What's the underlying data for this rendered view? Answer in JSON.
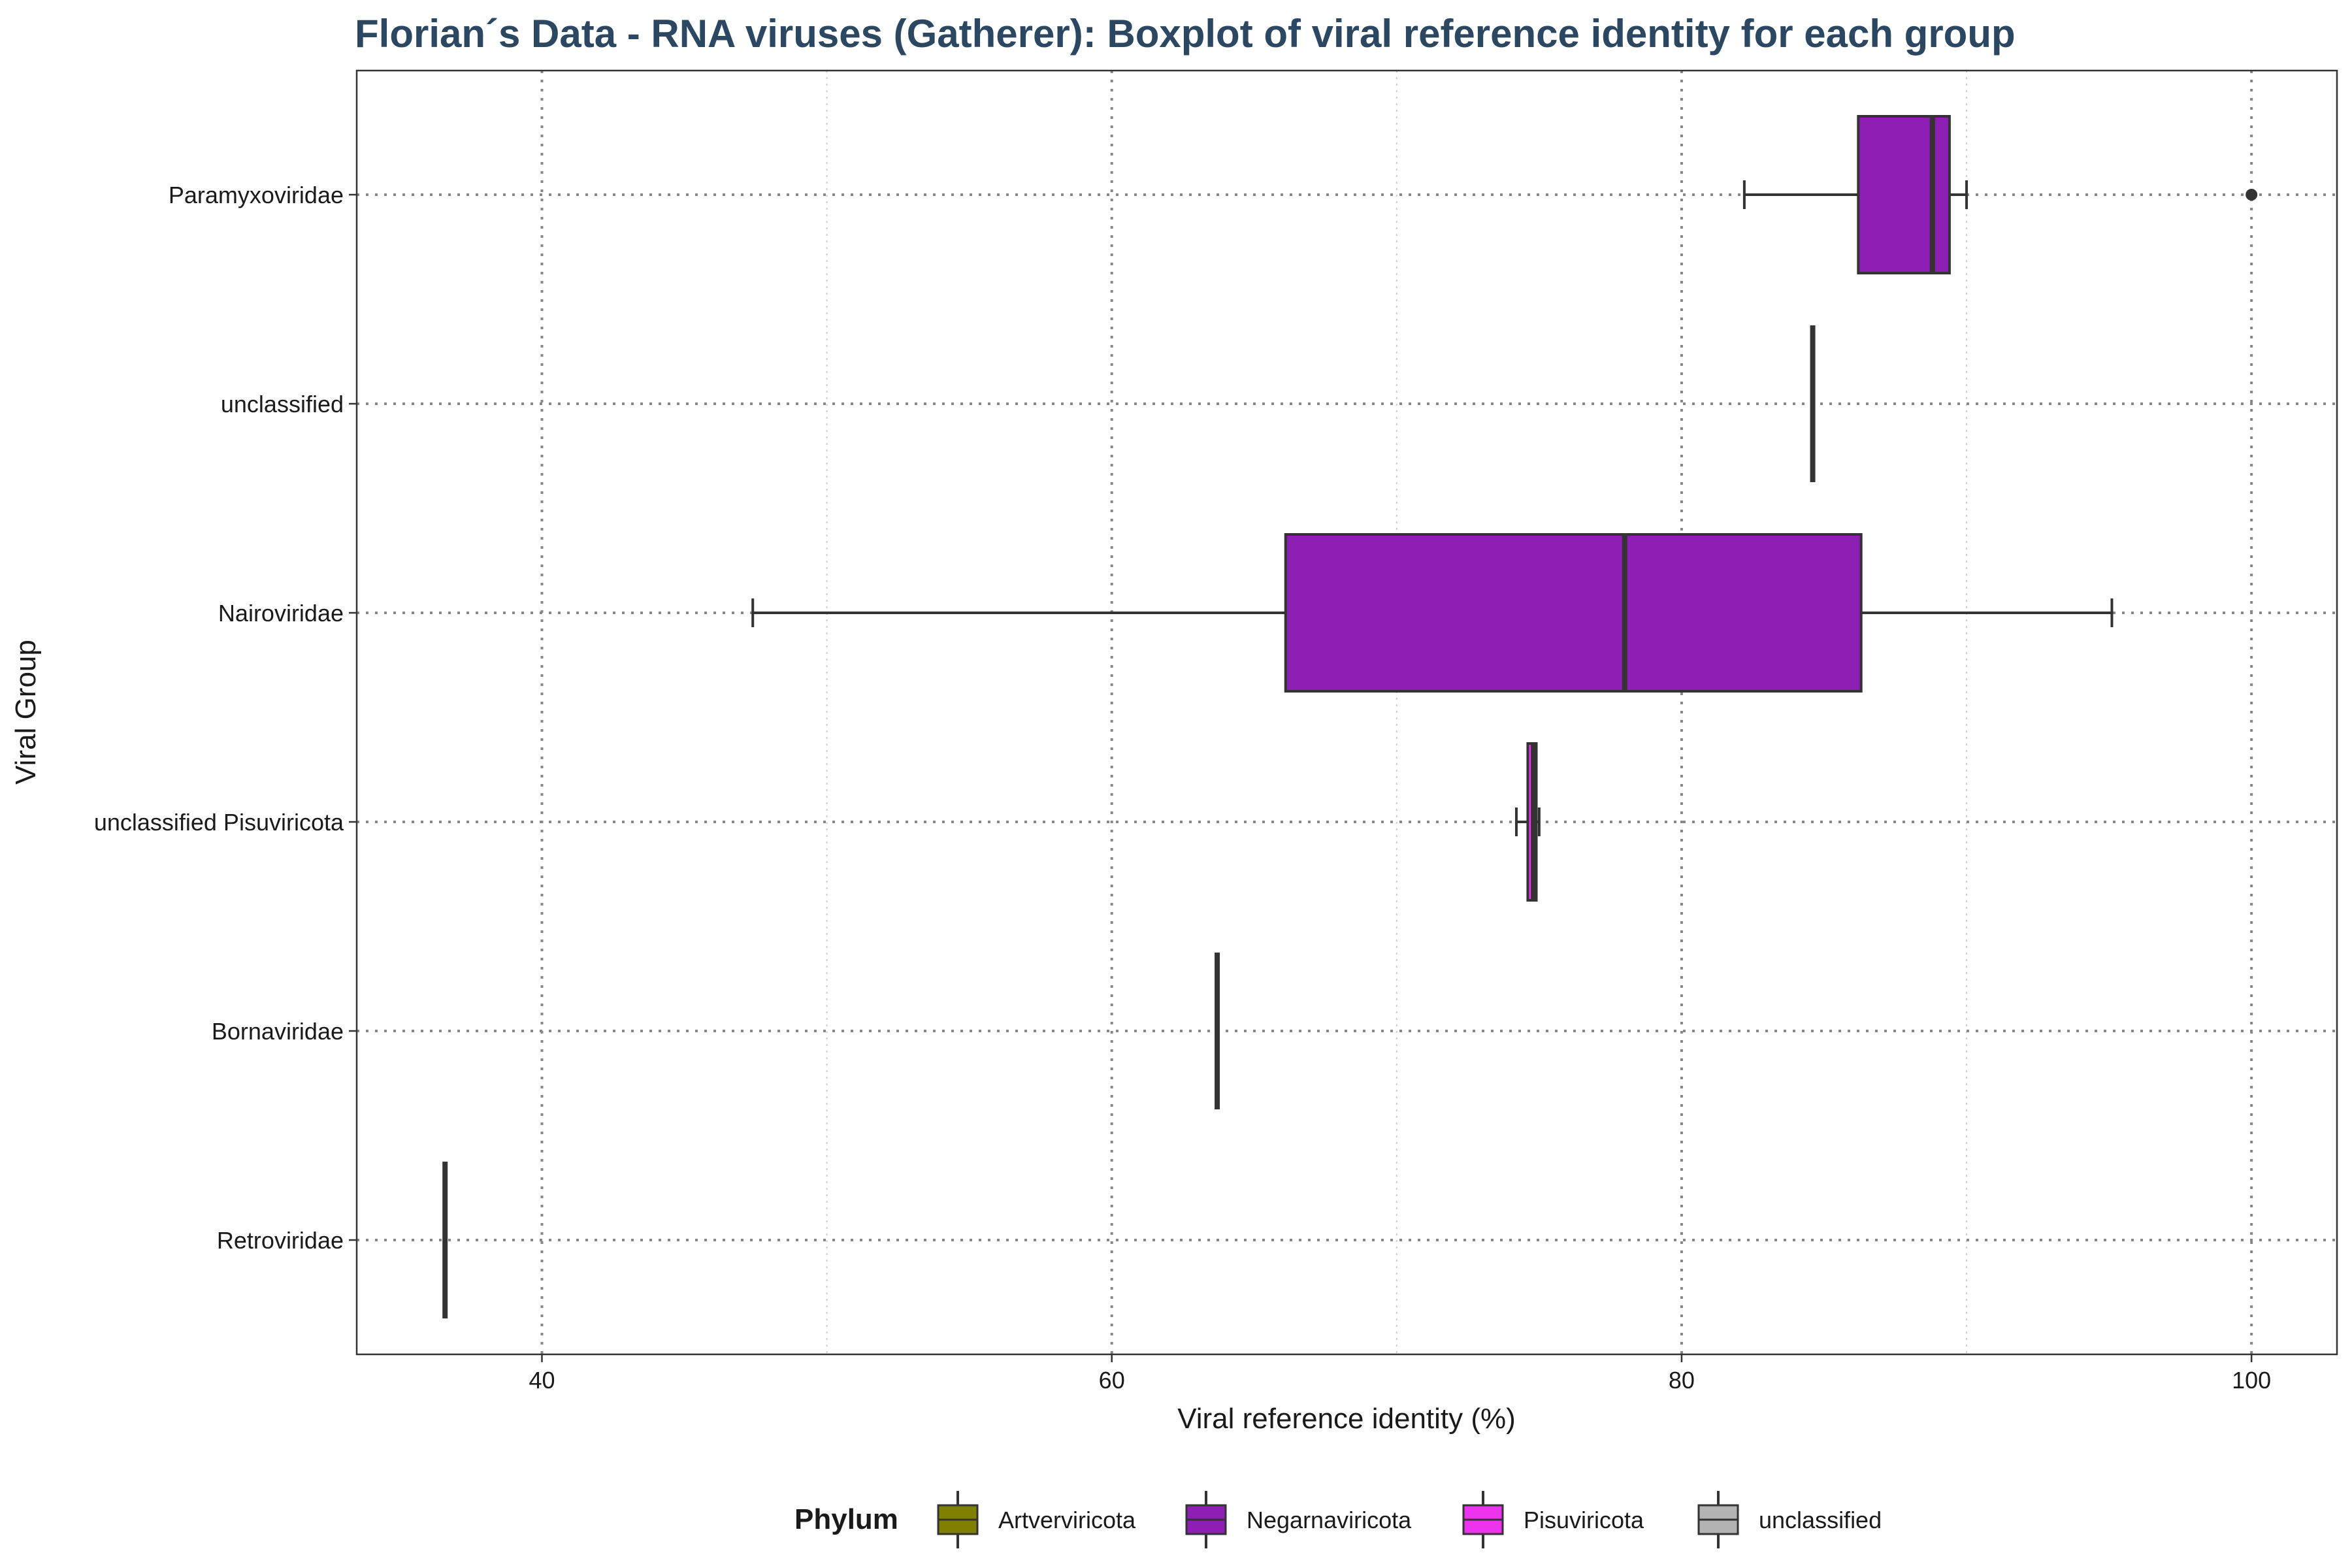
{
  "chart_data": {
    "type": "boxplot",
    "title": "Florian´s Data - RNA viruses (Gatherer): Boxplot of viral reference identity for each group",
    "xlabel": "Viral reference identity (%)",
    "ylabel": "Viral Group",
    "xlim": [
      33.5,
      103
    ],
    "x_ticks": [
      40,
      60,
      80,
      100
    ],
    "grid": "dotted",
    "legend": {
      "title": "Phylum",
      "position": "bottom",
      "entries": [
        {
          "label": "Artverviricota",
          "color": "#808000"
        },
        {
          "label": "Negarnaviricota",
          "color": "#8e1fb5"
        },
        {
          "label": "Pisuviricota",
          "color": "#ee33ee"
        },
        {
          "label": "unclassified",
          "color": "#b3b3b3"
        }
      ]
    },
    "categories": [
      "Paramyxoviridae",
      "unclassified",
      "Nairoviridae",
      "unclassified Pisuviricota",
      "Bornaviridae",
      "Retroviridae"
    ],
    "boxes": [
      {
        "group": "Paramyxoviridae",
        "phylum": "Negarnaviricota",
        "color": "#8e1fb5",
        "whisker_low": 82.2,
        "q1": 86.2,
        "median": 88.8,
        "q3": 89.4,
        "whisker_high": 90.0,
        "outliers": [
          100.0
        ]
      },
      {
        "group": "unclassified",
        "phylum": "unclassified",
        "color": "#b3b3b3",
        "whisker_low": 84.6,
        "q1": 84.6,
        "median": 84.6,
        "q3": 84.6,
        "whisker_high": 84.6,
        "outliers": []
      },
      {
        "group": "Nairoviridae",
        "phylum": "Negarnaviricota",
        "color": "#8e1fb5",
        "whisker_low": 47.4,
        "q1": 66.1,
        "median": 78.0,
        "q3": 86.3,
        "whisker_high": 95.1,
        "outliers": []
      },
      {
        "group": "unclassified Pisuviricota",
        "phylum": "Pisuviricota",
        "color": "#ee33ee",
        "whisker_low": 74.2,
        "q1": 74.6,
        "median": 74.8,
        "q3": 74.9,
        "whisker_high": 75.0,
        "outliers": []
      },
      {
        "group": "Bornaviridae",
        "phylum": "Negarnaviricota",
        "color": "#8e1fb5",
        "whisker_low": 63.7,
        "q1": 63.7,
        "median": 63.7,
        "q3": 63.7,
        "whisker_high": 63.7,
        "outliers": []
      },
      {
        "group": "Retroviridae",
        "phylum": "Artverviricota",
        "color": "#808000",
        "whisker_low": 36.6,
        "q1": 36.6,
        "median": 36.6,
        "q3": 36.6,
        "whisker_high": 36.6,
        "outliers": []
      }
    ]
  }
}
